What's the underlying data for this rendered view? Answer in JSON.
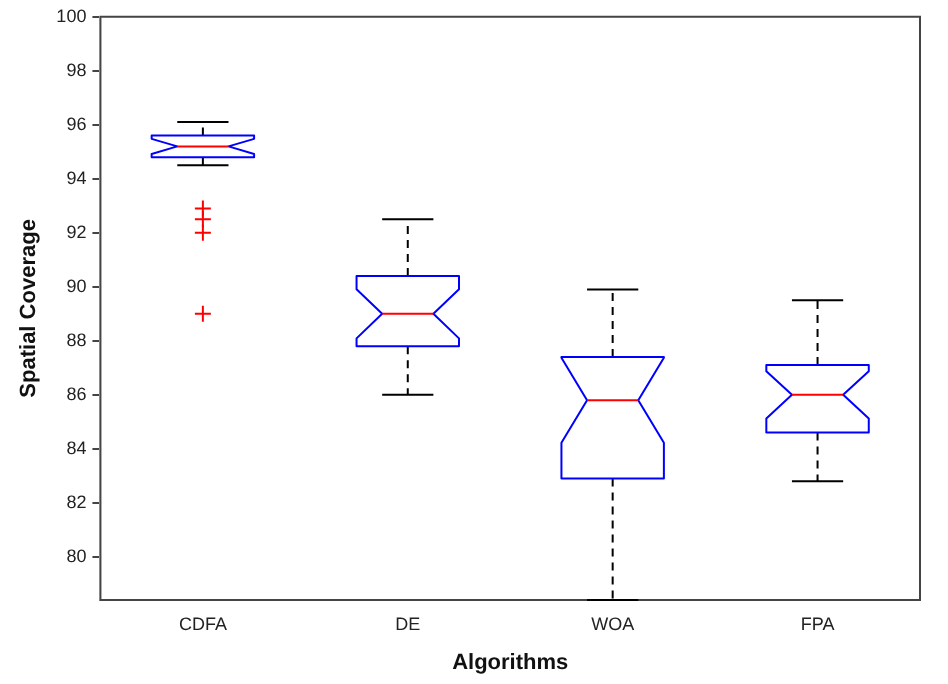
{
  "chart_data": {
    "type": "box",
    "xlabel": "Algorithms",
    "ylabel": "Spatial Coverage",
    "categories": [
      "CDFA",
      "DE",
      "WOA",
      "FPA"
    ],
    "color": "#0000ff",
    "boxes": [
      {
        "low": 94.5,
        "q1": 94.8,
        "median": 95.2,
        "q3": 95.6,
        "high": 96.1,
        "outliers": [
          92.9,
          92.5,
          92.0,
          89.0
        ]
      },
      {
        "low": 86.0,
        "q1": 87.8,
        "median": 89.0,
        "q3": 90.4,
        "high": 92.5
      },
      {
        "low": 78.4,
        "q1": 82.9,
        "median": 85.8,
        "q3": 87.4,
        "high": 89.9
      },
      {
        "low": 82.8,
        "q1": 84.6,
        "median": 86.0,
        "q3": 87.1,
        "high": 89.5
      }
    ],
    "ylim": [
      78.4,
      100
    ],
    "yticks": [
      80,
      82,
      84,
      86,
      88,
      90,
      92,
      94,
      96,
      98,
      100
    ],
    "grid": false
  }
}
